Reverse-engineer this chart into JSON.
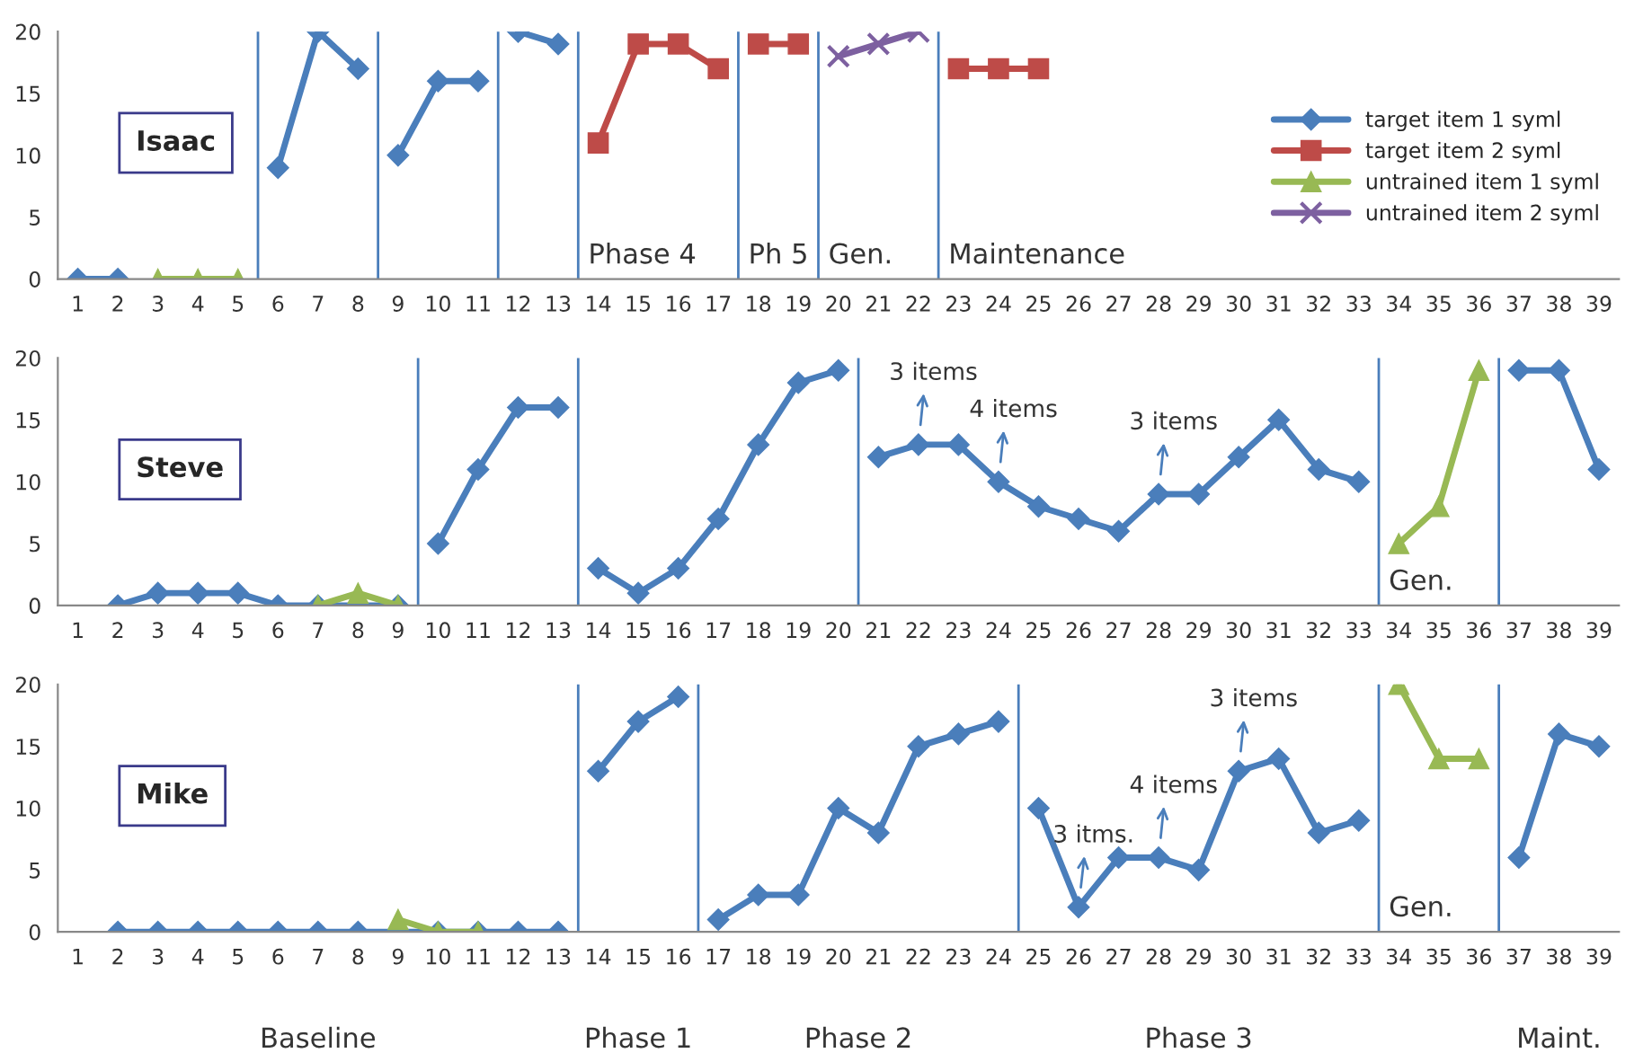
{
  "chart_data": [
    {
      "type": "line",
      "title": "Isaac",
      "xlim": [
        0.5,
        39.5
      ],
      "xticks": [
        1,
        2,
        3,
        4,
        5,
        6,
        7,
        8,
        9,
        10,
        11,
        12,
        13,
        14,
        15,
        16,
        17,
        18,
        19,
        20,
        21,
        22,
        23,
        24,
        25,
        26,
        27,
        28,
        29,
        30,
        31,
        32,
        33,
        34,
        35,
        36,
        37,
        38,
        39
      ],
      "ylim": [
        0,
        20
      ],
      "yticks": [
        0,
        5,
        10,
        15,
        20
      ],
      "grid": false,
      "legend": "right",
      "series": [
        {
          "name": "target item 1 syml",
          "color": "#4a7ebb",
          "marker": "diamond",
          "x": [
            1,
            2
          ],
          "values": [
            0,
            0
          ]
        },
        {
          "name": "target item 2 syml",
          "color": "#be4b48",
          "marker": "square",
          "x": [
            14,
            15,
            16,
            17
          ],
          "values": [
            11,
            19,
            19,
            17
          ]
        },
        {
          "name": "untrained item 1 syml",
          "color": "#98b954",
          "marker": "triangle",
          "x": [
            3,
            4,
            5
          ],
          "values": [
            0,
            0,
            0
          ]
        },
        {
          "name": "untrained item 2 syml",
          "color": "#7d60a0",
          "marker": "cross",
          "x": [
            20,
            21,
            22
          ],
          "values": [
            18,
            19,
            20
          ]
        },
        {
          "color": "#4a7ebb",
          "marker": "diamond",
          "x": [
            6,
            7,
            8
          ],
          "values": [
            9,
            20,
            17
          ]
        },
        {
          "color": "#4a7ebb",
          "marker": "diamond",
          "x": [
            9,
            10,
            11
          ],
          "values": [
            10,
            16,
            16
          ]
        },
        {
          "color": "#4a7ebb",
          "marker": "diamond",
          "x": [
            12,
            13
          ],
          "values": [
            20,
            19
          ]
        },
        {
          "color": "#be4b48",
          "marker": "square",
          "x": [
            18,
            19
          ],
          "values": [
            19,
            19
          ]
        },
        {
          "color": "#be4b48",
          "marker": "square",
          "x": [
            23,
            24,
            25
          ],
          "values": [
            17,
            17,
            17
          ]
        }
      ],
      "ref_lines": [
        {
          "axis": "x",
          "value": 5.5
        },
        {
          "axis": "x",
          "value": 8.5
        },
        {
          "axis": "x",
          "value": 11.5
        },
        {
          "axis": "x",
          "value": 13.5,
          "label": "Phase 4"
        },
        {
          "axis": "x",
          "value": 17.5,
          "label": "Ph 5"
        },
        {
          "axis": "x",
          "value": 19.5,
          "label": "Gen."
        },
        {
          "axis": "x",
          "value": 22.5,
          "label": "Maintenance"
        }
      ]
    },
    {
      "type": "line",
      "title": "Steve",
      "xlim": [
        0.5,
        39.5
      ],
      "xticks": [
        1,
        2,
        3,
        4,
        5,
        6,
        7,
        8,
        9,
        10,
        11,
        12,
        13,
        14,
        15,
        16,
        17,
        18,
        19,
        20,
        21,
        22,
        23,
        24,
        25,
        26,
        27,
        28,
        29,
        30,
        31,
        32,
        33,
        34,
        35,
        36,
        37,
        38,
        39
      ],
      "ylim": [
        0,
        20
      ],
      "yticks": [
        0,
        5,
        10,
        15,
        20
      ],
      "grid": false,
      "series": [
        {
          "color": "#4a7ebb",
          "marker": "diamond",
          "x": [
            2,
            3,
            4,
            5,
            6,
            7,
            8,
            9
          ],
          "values": [
            0,
            1,
            1,
            1,
            0,
            0,
            0,
            0
          ]
        },
        {
          "color": "#98b954",
          "marker": "triangle",
          "x": [
            7,
            8,
            9
          ],
          "values": [
            0,
            1,
            0
          ]
        },
        {
          "color": "#4a7ebb",
          "marker": "diamond",
          "x": [
            10,
            11,
            12,
            13
          ],
          "values": [
            5,
            11,
            16,
            16
          ]
        },
        {
          "color": "#4a7ebb",
          "marker": "diamond",
          "x": [
            14,
            15,
            16,
            17,
            18,
            19,
            20
          ],
          "values": [
            3,
            1,
            3,
            7,
            13,
            18,
            19
          ]
        },
        {
          "color": "#4a7ebb",
          "marker": "diamond",
          "x": [
            21,
            22,
            23,
            24,
            25,
            26,
            27,
            28,
            29,
            30,
            31,
            32,
            33
          ],
          "values": [
            12,
            13,
            13,
            10,
            8,
            7,
            6,
            9,
            9,
            12,
            15,
            11,
            10
          ]
        },
        {
          "color": "#98b954",
          "marker": "triangle",
          "x": [
            34,
            35,
            36
          ],
          "values": [
            5,
            8,
            19
          ]
        },
        {
          "color": "#4a7ebb",
          "marker": "diamond",
          "x": [
            37,
            38,
            39
          ],
          "values": [
            19,
            19,
            11
          ]
        }
      ],
      "ref_lines": [
        {
          "axis": "x",
          "value": 9.5
        },
        {
          "axis": "x",
          "value": 13.5
        },
        {
          "axis": "x",
          "value": 20.5
        },
        {
          "axis": "x",
          "value": 33.5,
          "label": "Gen."
        },
        {
          "axis": "x",
          "value": 36.5
        }
      ],
      "annotations": [
        {
          "text": "3 items",
          "x": 22,
          "y": 13
        },
        {
          "text": "4 items",
          "x": 24,
          "y": 10
        },
        {
          "text": "3 items",
          "x": 28,
          "y": 9
        }
      ]
    },
    {
      "type": "line",
      "title": "Mike",
      "xlim": [
        0.5,
        39.5
      ],
      "xticks": [
        1,
        2,
        3,
        4,
        5,
        6,
        7,
        8,
        9,
        10,
        11,
        12,
        13,
        14,
        15,
        16,
        17,
        18,
        19,
        20,
        21,
        22,
        23,
        24,
        25,
        26,
        27,
        28,
        29,
        30,
        31,
        32,
        33,
        34,
        35,
        36,
        37,
        38,
        39
      ],
      "ylim": [
        0,
        20
      ],
      "yticks": [
        0,
        5,
        10,
        15,
        20
      ],
      "grid": false,
      "series": [
        {
          "color": "#4a7ebb",
          "marker": "diamond",
          "x": [
            2,
            3,
            4,
            5,
            6,
            7,
            8,
            9,
            10,
            11,
            12,
            13
          ],
          "values": [
            0,
            0,
            0,
            0,
            0,
            0,
            0,
            0,
            0,
            0,
            0,
            0
          ]
        },
        {
          "color": "#98b954",
          "marker": "triangle",
          "x": [
            9,
            10,
            11
          ],
          "values": [
            1,
            0,
            0
          ]
        },
        {
          "color": "#4a7ebb",
          "marker": "diamond",
          "x": [
            14,
            15,
            16
          ],
          "values": [
            13,
            17,
            19
          ]
        },
        {
          "color": "#4a7ebb",
          "marker": "diamond",
          "x": [
            17,
            18,
            19,
            20,
            21,
            22,
            23,
            24
          ],
          "values": [
            1,
            3,
            3,
            10,
            8,
            15,
            16,
            17
          ]
        },
        {
          "color": "#4a7ebb",
          "marker": "diamond",
          "x": [
            25,
            26,
            27,
            28,
            29,
            30,
            31,
            32,
            33
          ],
          "values": [
            10,
            2,
            6,
            6,
            5,
            13,
            14,
            8,
            9
          ]
        },
        {
          "color": "#98b954",
          "marker": "triangle",
          "x": [
            34,
            35,
            36
          ],
          "values": [
            20,
            14,
            14
          ]
        },
        {
          "color": "#4a7ebb",
          "marker": "diamond",
          "x": [
            37,
            38,
            39
          ],
          "values": [
            6,
            16,
            15
          ]
        }
      ],
      "ref_lines": [
        {
          "axis": "x",
          "value": 13.5
        },
        {
          "axis": "x",
          "value": 16.5
        },
        {
          "axis": "x",
          "value": 24.5
        },
        {
          "axis": "x",
          "value": 33.5,
          "label": "Gen."
        },
        {
          "axis": "x",
          "value": 36.5
        }
      ],
      "annotations": [
        {
          "text": "3 itms.",
          "x": 26,
          "y": 2
        },
        {
          "text": "4 items",
          "x": 28,
          "y": 6
        },
        {
          "text": "3 items",
          "x": 30,
          "y": 13
        },
        "Baseline",
        "Phase 1",
        "Phase 2",
        "Phase 3",
        "Maint."
      ]
    }
  ]
}
